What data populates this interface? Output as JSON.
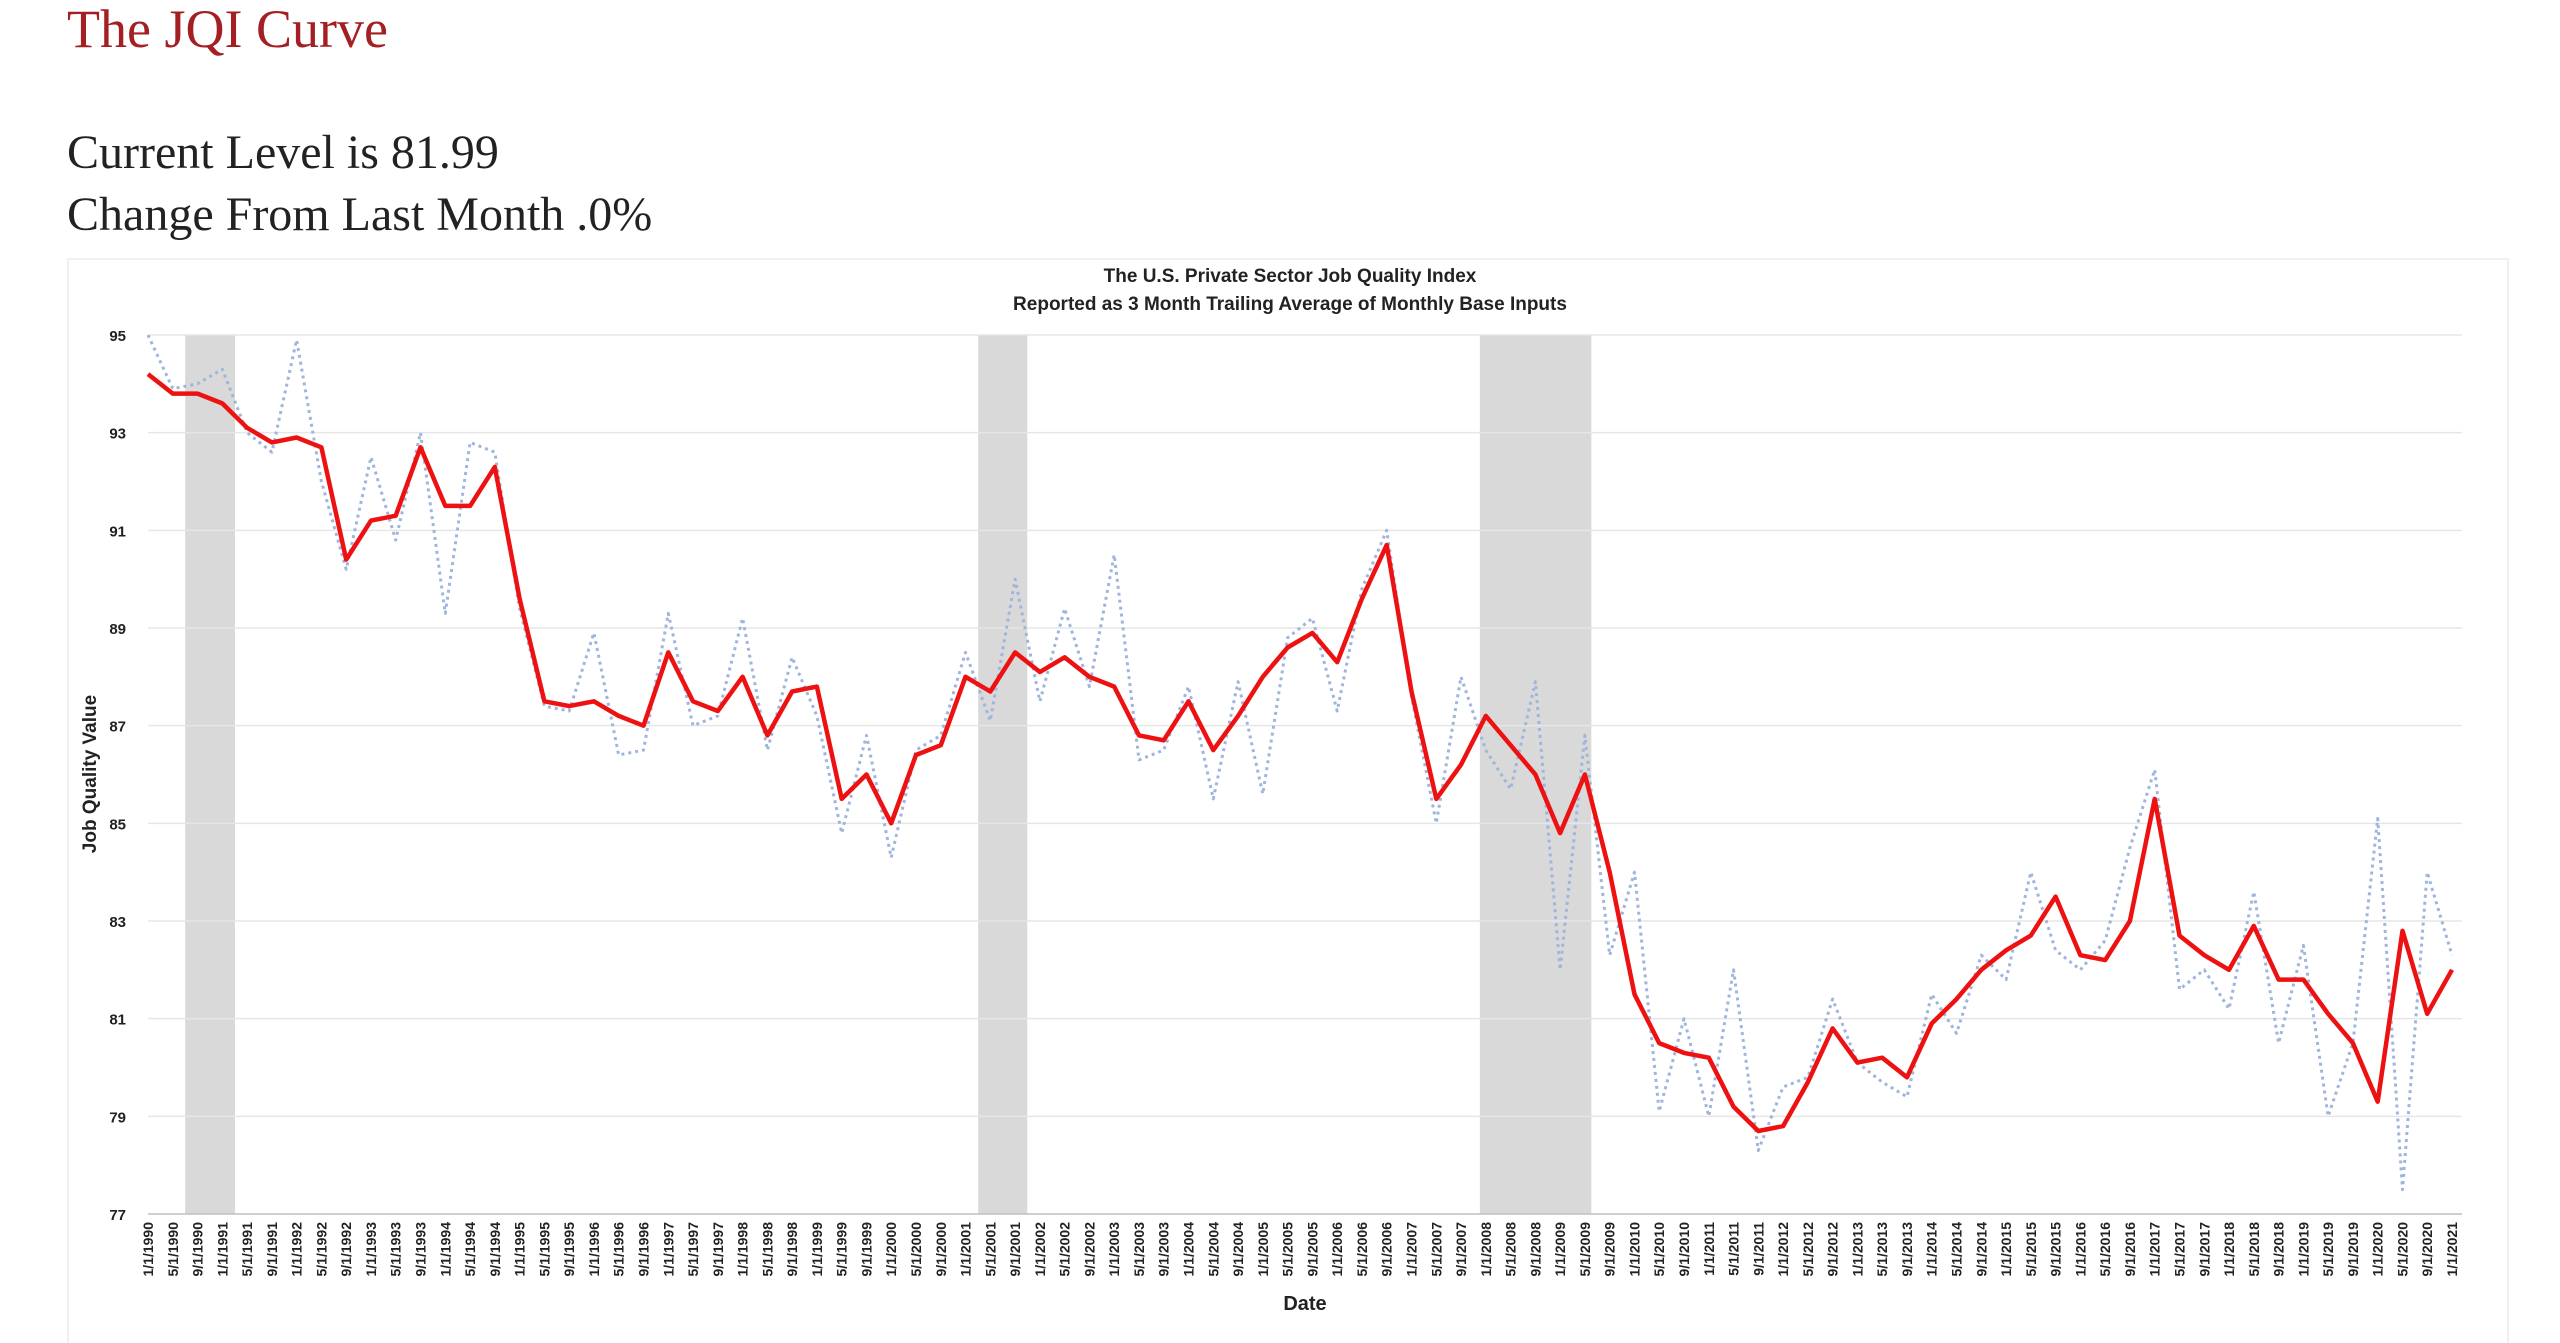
{
  "header": {
    "title": "The JQI Curve",
    "lines": [
      "Current Level is 81.99",
      "Change From Last Month .0%"
    ]
  },
  "chart_data": {
    "type": "line",
    "title": [
      "The U.S. Private Sector Job Quality Index",
      "Reported as 3 Month Trailing Average of Monthly Base Inputs"
    ],
    "x_label": "Date",
    "y_label": "Job Quality Value",
    "categories": [
      "1/1/1990",
      "5/1/1990",
      "9/1/1990",
      "1/1/1991",
      "5/1/1991",
      "9/1/1991",
      "1/1/1992",
      "5/1/1992",
      "9/1/1992",
      "1/1/1993",
      "5/1/1993",
      "9/1/1993",
      "1/1/1994",
      "5/1/1994",
      "9/1/1994",
      "1/1/1995",
      "5/1/1995",
      "9/1/1995",
      "1/1/1996",
      "5/1/1996",
      "9/1/1996",
      "1/1/1997",
      "5/1/1997",
      "9/1/1997",
      "1/1/1998",
      "5/1/1998",
      "9/1/1998",
      "1/1/1999",
      "5/1/1999",
      "9/1/1999",
      "1/1/2000",
      "5/1/2000",
      "9/1/2000",
      "1/1/2001",
      "5/1/2001",
      "9/1/2001",
      "1/1/2002",
      "5/1/2002",
      "9/1/2002",
      "1/1/2003",
      "5/1/2003",
      "9/1/2003",
      "1/1/2004",
      "5/1/2004",
      "9/1/2004",
      "1/1/2005",
      "5/1/2005",
      "9/1/2005",
      "1/1/2006",
      "5/1/2006",
      "9/1/2006",
      "1/1/2007",
      "5/1/2007",
      "9/1/2007",
      "1/1/2008",
      "5/1/2008",
      "9/1/2008",
      "1/1/2009",
      "5/1/2009",
      "9/1/2009",
      "1/1/2010",
      "5/1/2010",
      "9/1/2010",
      "1/1/2011",
      "5/1/2011",
      "9/1/2011",
      "1/1/2012",
      "5/1/2012",
      "9/1/2012",
      "1/1/2013",
      "5/1/2013",
      "9/1/2013",
      "1/1/2014",
      "5/1/2014",
      "9/1/2014",
      "1/1/2015",
      "5/1/2015",
      "9/1/2015",
      "1/1/2016",
      "5/1/2016",
      "9/1/2016",
      "1/1/2017",
      "5/1/2017",
      "9/1/2017",
      "1/1/2018",
      "5/1/2018",
      "9/1/2018",
      "1/1/2019",
      "5/1/2019",
      "9/1/2019",
      "1/1/2020",
      "5/1/2020",
      "9/1/2020",
      "1/1/2021"
    ],
    "series": [
      {
        "color": "#9fb5de",
        "dash": true,
        "values": [
          95.0,
          93.9,
          94.0,
          94.3,
          93.0,
          92.6,
          94.9,
          92.0,
          90.2,
          92.5,
          90.8,
          93.0,
          89.3,
          92.8,
          92.6,
          89.4,
          87.4,
          87.3,
          88.9,
          86.4,
          86.5,
          89.3,
          87.0,
          87.2,
          89.2,
          86.5,
          88.4,
          87.2,
          84.8,
          86.8,
          84.3,
          86.5,
          86.8,
          88.5,
          87.1,
          90.0,
          87.5,
          89.4,
          87.8,
          90.5,
          86.3,
          86.5,
          87.8,
          85.5,
          87.9,
          85.6,
          88.8,
          89.2,
          87.3,
          89.8,
          91.0,
          87.6,
          85.0,
          88.0,
          86.5,
          85.7,
          87.9,
          82.0,
          86.8,
          82.3,
          84.0,
          79.1,
          81.0,
          79.0,
          82.0,
          78.3,
          79.6,
          79.8,
          81.4,
          80.1,
          79.7,
          79.4,
          81.5,
          80.7,
          82.3,
          81.8,
          84.0,
          82.4,
          82.0,
          82.6,
          84.5,
          86.1,
          81.6,
          82.0,
          81.2,
          83.6,
          80.5,
          82.5,
          79.0,
          80.5,
          85.1,
          77.5,
          84.0,
          82.3
        ]
      },
      {
        "color": "#ee1111",
        "dash": false,
        "values": [
          94.2,
          93.8,
          93.8,
          93.6,
          93.1,
          92.8,
          92.9,
          92.7,
          90.4,
          91.2,
          91.3,
          92.7,
          91.5,
          91.5,
          92.3,
          89.6,
          87.5,
          87.4,
          87.5,
          87.2,
          87.0,
          88.5,
          87.5,
          87.3,
          88.0,
          86.8,
          87.7,
          87.8,
          85.5,
          86.0,
          85.0,
          86.4,
          86.6,
          88.0,
          87.7,
          88.5,
          88.1,
          88.4,
          88.0,
          87.8,
          86.8,
          86.7,
          87.5,
          86.5,
          87.2,
          88.0,
          88.6,
          88.9,
          88.3,
          89.6,
          90.7,
          87.7,
          85.5,
          86.2,
          87.2,
          86.6,
          86.0,
          84.8,
          86.0,
          84.0,
          81.5,
          80.5,
          80.3,
          80.2,
          79.2,
          78.7,
          78.8,
          79.7,
          80.8,
          80.1,
          80.2,
          79.8,
          80.9,
          81.4,
          82.0,
          82.4,
          82.7,
          83.5,
          82.3,
          82.2,
          83.0,
          85.5,
          82.7,
          82.3,
          82.0,
          82.9,
          81.8,
          81.8,
          81.1,
          80.5,
          79.3,
          82.8,
          81.1,
          82.0
        ]
      }
    ],
    "shaded_periods": [
      [
        1990.5,
        1991.17
      ],
      [
        2001.17,
        2001.83
      ],
      [
        2007.92,
        2009.42
      ]
    ],
    "shade_color": "#d9d9d9",
    "ylim": [
      77,
      95
    ],
    "yticks": [
      77,
      79,
      81,
      83,
      85,
      87,
      89,
      91,
      93,
      95
    ],
    "grid": true
  }
}
